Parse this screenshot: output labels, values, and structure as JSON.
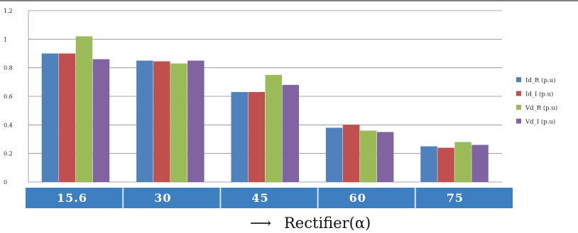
{
  "chart_data": {
    "type": "bar",
    "categories": [
      "15.6",
      "30",
      "45",
      "60",
      "75"
    ],
    "series": [
      {
        "name": "Id_R (p.u)",
        "color": "#4f81bd",
        "values": [
          0.9,
          0.85,
          0.63,
          0.38,
          0.25
        ]
      },
      {
        "name": "Id_I (p.u)",
        "color": "#c0504d",
        "values": [
          0.9,
          0.845,
          0.63,
          0.4,
          0.24
        ]
      },
      {
        "name": "Vd_R (p.u)",
        "color": "#9bbb59",
        "values": [
          1.02,
          0.83,
          0.75,
          0.36,
          0.28
        ]
      },
      {
        "name": "Vd_I (p.u)",
        "color": "#8064a2",
        "values": [
          0.86,
          0.85,
          0.68,
          0.35,
          0.26
        ]
      }
    ],
    "yticks": [
      "0",
      "0.2",
      "0.4",
      "0.6",
      "0.8",
      "1",
      "1.2"
    ],
    "ylim": [
      0,
      1.2
    ],
    "grid": true,
    "legend_position": "right",
    "xlabel": "Rectifier(α)",
    "xlabel_arrow": "⟶",
    "category_band_color": "#3e7fc1"
  }
}
